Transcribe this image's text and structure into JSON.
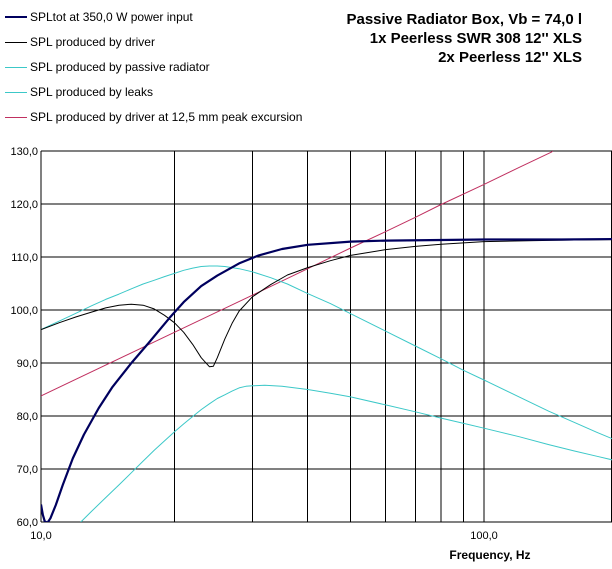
{
  "chart_data": {
    "type": "line",
    "title": [
      "Passive Radiator Box, Vb = 74,0 l",
      "1x Peerless SWR 308 12'' XLS",
      "2x Peerless 12'' XLS"
    ],
    "xlabel": "Frequency, Hz",
    "ylabel": "",
    "x_scale": "log",
    "xlim": [
      10,
      200
    ],
    "ylim": [
      60,
      130
    ],
    "x_tick_labels": [
      {
        "x": 10,
        "label": "10,0"
      },
      {
        "x": 100,
        "label": "100,0"
      }
    ],
    "x_gridlines": [
      20,
      30,
      40,
      50,
      60,
      70,
      80,
      90,
      100,
      200
    ],
    "y_ticks": [
      {
        "y": 60,
        "label": "60,0"
      },
      {
        "y": 70,
        "label": "70,0"
      },
      {
        "y": 80,
        "label": "80,0"
      },
      {
        "y": 90,
        "label": "90,0"
      },
      {
        "y": 100,
        "label": "100,0"
      },
      {
        "y": 110,
        "label": "110,0"
      },
      {
        "y": 120,
        "label": "120,0"
      },
      {
        "y": 130,
        "label": "130,0"
      }
    ],
    "grid": true,
    "legend_position": "top-left",
    "series": [
      {
        "name": "SPLtot at 350,0 W power input",
        "color": "#00005e",
        "width": 2.2,
        "points": [
          [
            10.0,
            63.3
          ],
          [
            10.1,
            61.3
          ],
          [
            10.2,
            60.1
          ],
          [
            10.35,
            59.9
          ],
          [
            10.5,
            60.7
          ],
          [
            10.8,
            63.2
          ],
          [
            11.2,
            67.0
          ],
          [
            11.8,
            72.0
          ],
          [
            12.5,
            76.5
          ],
          [
            13.5,
            81.5
          ],
          [
            14.5,
            85.5
          ],
          [
            16.0,
            90.0
          ],
          [
            17.5,
            93.8
          ],
          [
            19.5,
            98.5
          ],
          [
            21.0,
            101.5
          ],
          [
            23.0,
            104.5
          ],
          [
            25.0,
            106.5
          ],
          [
            28.0,
            108.8
          ],
          [
            31.0,
            110.3
          ],
          [
            35.0,
            111.5
          ],
          [
            40.0,
            112.3
          ],
          [
            50.0,
            112.9
          ],
          [
            60.0,
            113.1
          ],
          [
            80.0,
            113.2
          ],
          [
            100.0,
            113.3
          ],
          [
            150.0,
            113.3
          ],
          [
            200.0,
            113.4
          ]
        ]
      },
      {
        "name": "SPL produced by driver",
        "color": "#000000",
        "width": 1,
        "points": [
          [
            10.0,
            96.3
          ],
          [
            11.0,
            97.6
          ],
          [
            12.0,
            98.7
          ],
          [
            13.0,
            99.6
          ],
          [
            14.0,
            100.4
          ],
          [
            15.0,
            100.9
          ],
          [
            16.0,
            101.1
          ],
          [
            17.0,
            100.9
          ],
          [
            18.0,
            100.2
          ],
          [
            19.0,
            99.0
          ],
          [
            20.0,
            97.6
          ],
          [
            21.0,
            95.8
          ],
          [
            22.0,
            93.5
          ],
          [
            23.0,
            91.0
          ],
          [
            24.0,
            89.3
          ],
          [
            24.5,
            89.4
          ],
          [
            25.0,
            91.0
          ],
          [
            26.0,
            94.5
          ],
          [
            27.0,
            97.5
          ],
          [
            28.0,
            99.8
          ],
          [
            30.0,
            102.5
          ],
          [
            33.0,
            104.8
          ],
          [
            36.0,
            106.6
          ],
          [
            40.0,
            108.0
          ],
          [
            45.0,
            109.3
          ],
          [
            50.0,
            110.3
          ],
          [
            60.0,
            111.4
          ],
          [
            70.0,
            112.0
          ],
          [
            80.0,
            112.4
          ],
          [
            100.0,
            112.9
          ],
          [
            130.0,
            113.1
          ],
          [
            160.0,
            113.2
          ],
          [
            200.0,
            113.3
          ]
        ]
      },
      {
        "name": "SPL produced by passive radiator",
        "color": "#3cc8c8",
        "width": 1,
        "points": [
          [
            10.0,
            96.3
          ],
          [
            11.0,
            97.9
          ],
          [
            12.0,
            99.4
          ],
          [
            13.0,
            100.8
          ],
          [
            14.0,
            102.0
          ],
          [
            15.0,
            103.0
          ],
          [
            16.0,
            104.0
          ],
          [
            17.0,
            104.9
          ],
          [
            18.0,
            105.6
          ],
          [
            19.0,
            106.3
          ],
          [
            20.0,
            106.9
          ],
          [
            21.0,
            107.5
          ],
          [
            22.0,
            107.9
          ],
          [
            23.0,
            108.2
          ],
          [
            24.0,
            108.3
          ],
          [
            25.0,
            108.3
          ],
          [
            26.0,
            108.2
          ],
          [
            28.0,
            107.8
          ],
          [
            30.0,
            107.2
          ],
          [
            33.0,
            106.1
          ],
          [
            36.0,
            104.9
          ],
          [
            40.0,
            103.1
          ],
          [
            45.0,
            101.2
          ],
          [
            50.0,
            99.3
          ],
          [
            60.0,
            96.0
          ],
          [
            70.0,
            93.2
          ],
          [
            80.0,
            90.8
          ],
          [
            90.0,
            88.6
          ],
          [
            100.0,
            86.8
          ],
          [
            120.0,
            83.6
          ],
          [
            140.0,
            80.9
          ],
          [
            160.0,
            78.8
          ],
          [
            180.0,
            76.9
          ],
          [
            200.0,
            75.3
          ]
        ]
      },
      {
        "name": "SPL produced by leaks",
        "color": "#3cc8c8",
        "width": 1,
        "points": [
          [
            12.3,
            60.0
          ],
          [
            13.0,
            62.0
          ],
          [
            14.0,
            64.6
          ],
          [
            15.0,
            67.0
          ],
          [
            16.0,
            69.3
          ],
          [
            17.0,
            71.5
          ],
          [
            18.0,
            73.5
          ],
          [
            19.0,
            75.3
          ],
          [
            20.0,
            77.0
          ],
          [
            21.0,
            78.5
          ],
          [
            22.0,
            79.9
          ],
          [
            23.0,
            81.2
          ],
          [
            24.0,
            82.3
          ],
          [
            25.0,
            83.3
          ],
          [
            26.0,
            84.0
          ],
          [
            27.0,
            84.7
          ],
          [
            28.0,
            85.3
          ],
          [
            29.0,
            85.6
          ],
          [
            30.0,
            85.7
          ],
          [
            32.0,
            85.8
          ],
          [
            35.0,
            85.6
          ],
          [
            40.0,
            85.0
          ],
          [
            45.0,
            84.3
          ],
          [
            50.0,
            83.6
          ],
          [
            60.0,
            82.1
          ],
          [
            70.0,
            80.8
          ],
          [
            80.0,
            79.6
          ],
          [
            90.0,
            78.6
          ],
          [
            100.0,
            77.7
          ],
          [
            120.0,
            76.1
          ],
          [
            140.0,
            74.6
          ],
          [
            160.0,
            73.4
          ],
          [
            180.0,
            72.4
          ],
          [
            200.0,
            71.5
          ]
        ]
      },
      {
        "name": "SPL produced by driver at 12,5 mm peak excursion",
        "color": "#c03060",
        "width": 1,
        "points": [
          [
            10.0,
            83.8
          ],
          [
            20.0,
            95.8
          ],
          [
            30.0,
            102.8
          ],
          [
            40.0,
            107.8
          ],
          [
            50.0,
            111.7
          ],
          [
            60.0,
            114.8
          ],
          [
            70.0,
            117.5
          ],
          [
            80.0,
            119.9
          ],
          [
            100.0,
            123.7
          ],
          [
            120.0,
            126.9
          ],
          [
            142.0,
            129.8
          ],
          [
            143.0,
            130.0
          ]
        ]
      }
    ]
  }
}
